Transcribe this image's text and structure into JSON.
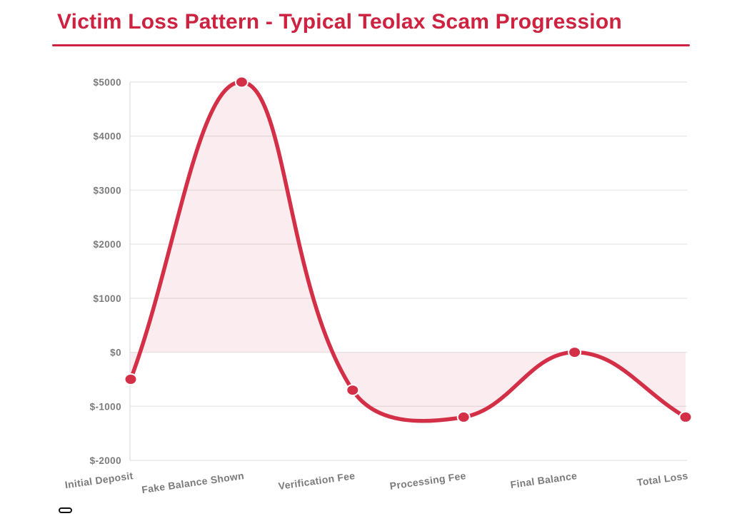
{
  "title": {
    "text": "Victim Loss Pattern - Typical Teolax Scam Progression"
  },
  "chart_data": {
    "type": "line",
    "title": "Victim Loss Pattern - Typical Teolax Scam Progression",
    "categories": [
      "Initial Deposit",
      "Fake Balance Shown",
      "Verification Fee",
      "Processing Fee",
      "Final Balance",
      "Total Loss"
    ],
    "values": [
      -500,
      5000,
      -700,
      -1200,
      0,
      -1200
    ],
    "xlabel": "",
    "ylabel": "",
    "ylim": [
      -2000,
      5000
    ],
    "ytick_step": 1000,
    "yticks": [
      {
        "value": 5000,
        "label": "$5000"
      },
      {
        "value": 4000,
        "label": "$4000"
      },
      {
        "value": 3000,
        "label": "$3000"
      },
      {
        "value": 2000,
        "label": "$2000"
      },
      {
        "value": 1000,
        "label": "$1000"
      },
      {
        "value": 0,
        "label": "$0"
      },
      {
        "value": -1000,
        "label": "$-1000"
      },
      {
        "value": -2000,
        "label": "$-2000"
      }
    ],
    "baseline": 0,
    "grid": true,
    "legend": "none",
    "smooth": true,
    "tension": 0.4,
    "area_fill": true,
    "colors": {
      "title": "#ce2340",
      "title_underline": "#ce2340",
      "line": "#d33048",
      "point": "#d33048",
      "point_border": "#ffffff",
      "area": "rgba(211,47,65,0.085)",
      "grid": "#e9e9e9",
      "axis": "#e2e2e2",
      "tick_label": "#7b7b7b"
    }
  },
  "misc": {
    "bottom_pill_color": "#111111"
  }
}
